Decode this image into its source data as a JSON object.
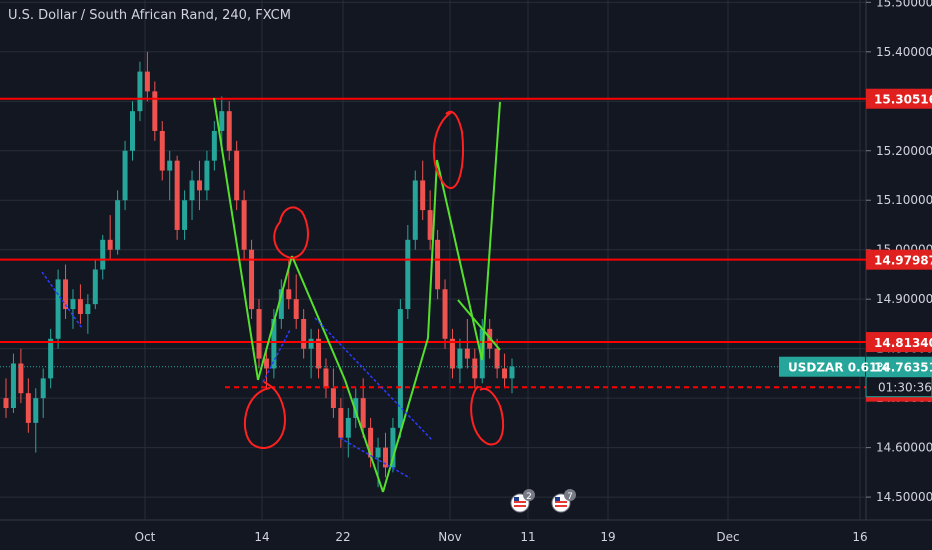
{
  "header": {
    "title": "U.S. Dollar / South African Rand, 240, FXCM"
  },
  "chart_data": {
    "type": "candlestick",
    "symbol": "USDZAR",
    "timeframe": "240",
    "source": "FXCM",
    "y_axis": {
      "range": [
        14.4537,
        15.5047
      ],
      "ticks": [
        "15.50000",
        "15.40000",
        "15.30000",
        "15.20000",
        "15.10000",
        "15.00000",
        "14.90000",
        "14.80000",
        "14.70000",
        "14.60000",
        "14.50000"
      ]
    },
    "x_axis": {
      "ticks": [
        "Oct",
        "14",
        "22",
        "Nov",
        "11",
        "19",
        "Dec",
        "16"
      ]
    },
    "horizontal_levels": [
      {
        "value": 15.30516,
        "label": "15.30516"
      },
      {
        "value": 14.97987,
        "label": "14.97987"
      },
      {
        "value": 14.8134,
        "label": "14.81340"
      },
      {
        "value": 14.7131,
        "label": "14.71310"
      }
    ],
    "current_price": {
      "symbol_label": "USDZAR 0.61%",
      "value": 14.76351,
      "label": "14.76351",
      "countdown": "01:30:36"
    },
    "support_line": {
      "value": 14.722
    },
    "candles": [
      [
        14.7,
        14.74,
        14.66,
        14.68
      ],
      [
        14.68,
        14.79,
        14.67,
        14.77
      ],
      [
        14.77,
        14.8,
        14.69,
        14.71
      ],
      [
        14.71,
        14.74,
        14.63,
        14.65
      ],
      [
        14.65,
        14.72,
        14.59,
        14.7
      ],
      [
        14.7,
        14.76,
        14.66,
        14.74
      ],
      [
        14.74,
        14.84,
        14.72,
        14.82
      ],
      [
        14.82,
        14.96,
        14.8,
        14.94
      ],
      [
        14.94,
        14.97,
        14.86,
        14.88
      ],
      [
        14.88,
        14.92,
        14.84,
        14.9
      ],
      [
        14.9,
        14.93,
        14.85,
        14.87
      ],
      [
        14.87,
        14.91,
        14.83,
        14.89
      ],
      [
        14.89,
        14.98,
        14.88,
        14.96
      ],
      [
        14.96,
        15.03,
        14.94,
        15.02
      ],
      [
        15.02,
        15.07,
        14.98,
        15.0
      ],
      [
        15.0,
        15.12,
        14.99,
        15.1
      ],
      [
        15.1,
        15.22,
        15.08,
        15.2
      ],
      [
        15.2,
        15.3,
        15.18,
        15.28
      ],
      [
        15.28,
        15.38,
        15.26,
        15.36
      ],
      [
        15.36,
        15.4,
        15.3,
        15.32
      ],
      [
        15.32,
        15.34,
        15.22,
        15.24
      ],
      [
        15.24,
        15.26,
        15.14,
        15.16
      ],
      [
        15.16,
        15.2,
        15.1,
        15.18
      ],
      [
        15.18,
        15.19,
        15.02,
        15.04
      ],
      [
        15.04,
        15.12,
        15.02,
        15.1
      ],
      [
        15.1,
        15.16,
        15.06,
        15.14
      ],
      [
        15.14,
        15.18,
        15.08,
        15.12
      ],
      [
        15.12,
        15.2,
        15.1,
        15.18
      ],
      [
        15.18,
        15.26,
        15.16,
        15.24
      ],
      [
        15.24,
        15.31,
        15.2,
        15.28
      ],
      [
        15.28,
        15.3,
        15.18,
        15.2
      ],
      [
        15.2,
        15.22,
        15.08,
        15.1
      ],
      [
        15.1,
        15.12,
        14.98,
        15.0
      ],
      [
        15.0,
        15.02,
        14.86,
        14.88
      ],
      [
        14.88,
        14.9,
        14.76,
        14.78
      ],
      [
        14.78,
        14.8,
        14.72,
        14.76
      ],
      [
        14.76,
        14.88,
        14.74,
        14.86
      ],
      [
        14.86,
        14.94,
        14.84,
        14.92
      ],
      [
        14.92,
        14.98,
        14.88,
        14.9
      ],
      [
        14.9,
        14.95,
        14.84,
        14.86
      ],
      [
        14.86,
        14.88,
        14.78,
        14.8
      ],
      [
        14.8,
        14.84,
        14.74,
        14.82
      ],
      [
        14.82,
        14.84,
        14.74,
        14.76
      ],
      [
        14.76,
        14.78,
        14.7,
        14.72
      ],
      [
        14.72,
        14.76,
        14.66,
        14.68
      ],
      [
        14.68,
        14.7,
        14.6,
        14.62
      ],
      [
        14.62,
        14.68,
        14.58,
        14.66
      ],
      [
        14.66,
        14.72,
        14.64,
        14.7
      ],
      [
        14.7,
        14.74,
        14.62,
        14.64
      ],
      [
        14.64,
        14.66,
        14.56,
        14.58
      ],
      [
        14.58,
        14.62,
        14.52,
        14.6
      ],
      [
        14.6,
        14.63,
        14.54,
        14.56
      ],
      [
        14.56,
        14.66,
        14.55,
        14.64
      ],
      [
        14.64,
        14.9,
        14.62,
        14.88
      ],
      [
        14.88,
        15.05,
        14.86,
        15.02
      ],
      [
        15.02,
        15.16,
        15.0,
        15.14
      ],
      [
        15.14,
        15.18,
        15.06,
        15.08
      ],
      [
        15.08,
        15.12,
        15.0,
        15.02
      ],
      [
        15.02,
        15.04,
        14.9,
        14.92
      ],
      [
        14.92,
        14.94,
        14.8,
        14.82
      ],
      [
        14.82,
        14.84,
        14.74,
        14.76
      ],
      [
        14.76,
        14.82,
        14.73,
        14.8
      ],
      [
        14.8,
        14.86,
        14.76,
        14.78
      ],
      [
        14.78,
        14.8,
        14.72,
        14.74
      ],
      [
        14.74,
        14.86,
        14.73,
        14.84
      ],
      [
        14.84,
        14.86,
        14.78,
        14.8
      ],
      [
        14.8,
        14.82,
        14.74,
        14.76
      ],
      [
        14.76,
        14.79,
        14.72,
        14.74
      ],
      [
        14.74,
        14.78,
        14.71,
        14.764
      ]
    ]
  },
  "annotations": {
    "event_badges": [
      {
        "icon": "us-flag-icon",
        "count": "2"
      },
      {
        "icon": "us-flag-icon",
        "count": "7"
      }
    ]
  },
  "colors": {
    "background": "#131722",
    "grid": "#2a2e39",
    "up": "#26a69a",
    "down": "#ef5350",
    "level_line": "#ff0000",
    "level_label_bg": "#e01f1f",
    "price_label_bg": "#26a69a",
    "axis_text": "#d1d4dc",
    "trend_green": "#55e02e",
    "trend_blue": "#2b3cff",
    "annotation_red": "#ff2020"
  }
}
